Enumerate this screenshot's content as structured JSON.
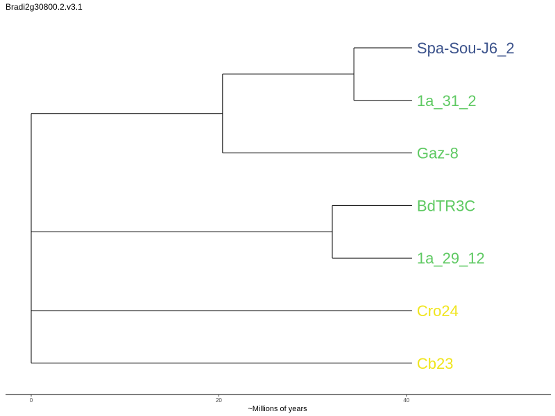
{
  "title": "Bradi2g30800.2.v3.1",
  "axis": {
    "label": "~Millions of years",
    "ticks": [
      0,
      20,
      40
    ],
    "range": [
      0,
      55
    ]
  },
  "colors": {
    "branch": "#000000",
    "blue": "#3b528b",
    "green": "#5ec962",
    "yellow": "#f0e51e"
  },
  "tree": {
    "depth": 40.6,
    "tips": [
      {
        "label": "Spa-Sou-J6_2",
        "color": "#3b528b"
      },
      {
        "label": "1a_31_2",
        "color": "#5ec962"
      },
      {
        "label": "Gaz-8",
        "color": "#5ec962"
      },
      {
        "label": "BdTR3C",
        "color": "#5ec962"
      },
      {
        "label": "1a_29_12",
        "color": "#5ec962"
      },
      {
        "label": "Cro24",
        "color": "#f0e51e"
      },
      {
        "label": "Cb23",
        "color": "#f0e51e"
      }
    ],
    "nodes": [
      {
        "id": "root",
        "age": 0,
        "children": [
          "nA",
          "nB",
          "t5",
          "t6"
        ]
      },
      {
        "id": "nA",
        "age": 20.4,
        "children": [
          "nC",
          "t2"
        ]
      },
      {
        "id": "nC",
        "age": 34.4,
        "children": [
          "t0",
          "t1"
        ]
      },
      {
        "id": "nB",
        "age": 32.1,
        "children": [
          "t3",
          "t4"
        ]
      }
    ]
  }
}
